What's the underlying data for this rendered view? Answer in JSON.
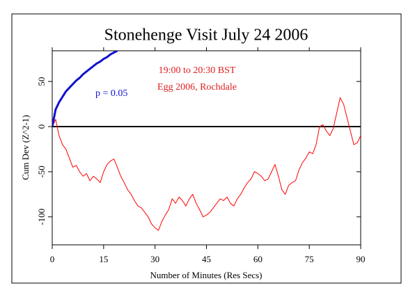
{
  "chart_data": {
    "type": "line",
    "title": "Stonehenge Visit July 24 2006",
    "xlabel": "Number of Minutes (Res Secs)",
    "ylabel": "Cum Dev (Z^2-1)",
    "annotations": [
      {
        "text": "p = 0.05",
        "color": "#1010d0"
      },
      {
        "text": "19:00 to 20:30 BST",
        "color": "#e02020"
      },
      {
        "text": "Egg 2006, Rochdale",
        "color": "#e02020"
      }
    ],
    "xlim": [
      0,
      90
    ],
    "xticks": [
      0,
      15,
      30,
      45,
      60,
      75,
      90
    ],
    "ylim": [
      -131,
      84
    ],
    "yticks": [
      -100,
      -50,
      0,
      50
    ],
    "zero_line": true,
    "series": [
      {
        "color": "#ff0000",
        "width": 1,
        "x": [
          0,
          1,
          2,
          3,
          4,
          5,
          6,
          7,
          8,
          9,
          10,
          11,
          12,
          13,
          14,
          15,
          16,
          17,
          18,
          19,
          20,
          21,
          22,
          23,
          24,
          25,
          26,
          27,
          28,
          29,
          30,
          31,
          32,
          33,
          34,
          35,
          36,
          37,
          38,
          39,
          40,
          41,
          42,
          43,
          44,
          45,
          46,
          47,
          48,
          49,
          50,
          51,
          52,
          53,
          54,
          55,
          56,
          57,
          58,
          59,
          60,
          61,
          62,
          63,
          64,
          65,
          66,
          67,
          68,
          69,
          70,
          71,
          72,
          73,
          74,
          75,
          76,
          77,
          78,
          79,
          80,
          81,
          82,
          83,
          84,
          85,
          86,
          87,
          88,
          89,
          90
        ],
        "values": [
          0,
          8,
          -10,
          -20,
          -25,
          -35,
          -45,
          -43,
          -50,
          -55,
          -52,
          -60,
          -55,
          -58,
          -62,
          -50,
          -42,
          -38,
          -36,
          -45,
          -55,
          -62,
          -70,
          -75,
          -82,
          -88,
          -90,
          -95,
          -100,
          -108,
          -112,
          -115,
          -105,
          -98,
          -92,
          -80,
          -85,
          -78,
          -82,
          -88,
          -80,
          -75,
          -85,
          -92,
          -100,
          -98,
          -95,
          -90,
          -85,
          -80,
          -82,
          -78,
          -85,
          -88,
          -80,
          -75,
          -68,
          -62,
          -58,
          -50,
          -52,
          -55,
          -60,
          -58,
          -50,
          -42,
          -55,
          -70,
          -75,
          -65,
          -62,
          -60,
          -48,
          -40,
          -35,
          -28,
          -30,
          -20,
          0,
          2,
          -5,
          -10,
          -2,
          15,
          32,
          25,
          10,
          -5,
          -20,
          -18,
          -10
        ]
      },
      {
        "color": "#1010d0",
        "width": 3,
        "x": [
          0,
          1,
          2,
          3,
          4,
          5,
          6,
          7,
          8,
          9,
          10,
          11,
          12,
          13,
          14,
          15,
          16,
          17,
          18,
          19
        ],
        "values": [
          0,
          19,
          27,
          33,
          39,
          43,
          47,
          51,
          54,
          58,
          61,
          64,
          67,
          70,
          72,
          75,
          77,
          80,
          82,
          84
        ]
      }
    ]
  }
}
